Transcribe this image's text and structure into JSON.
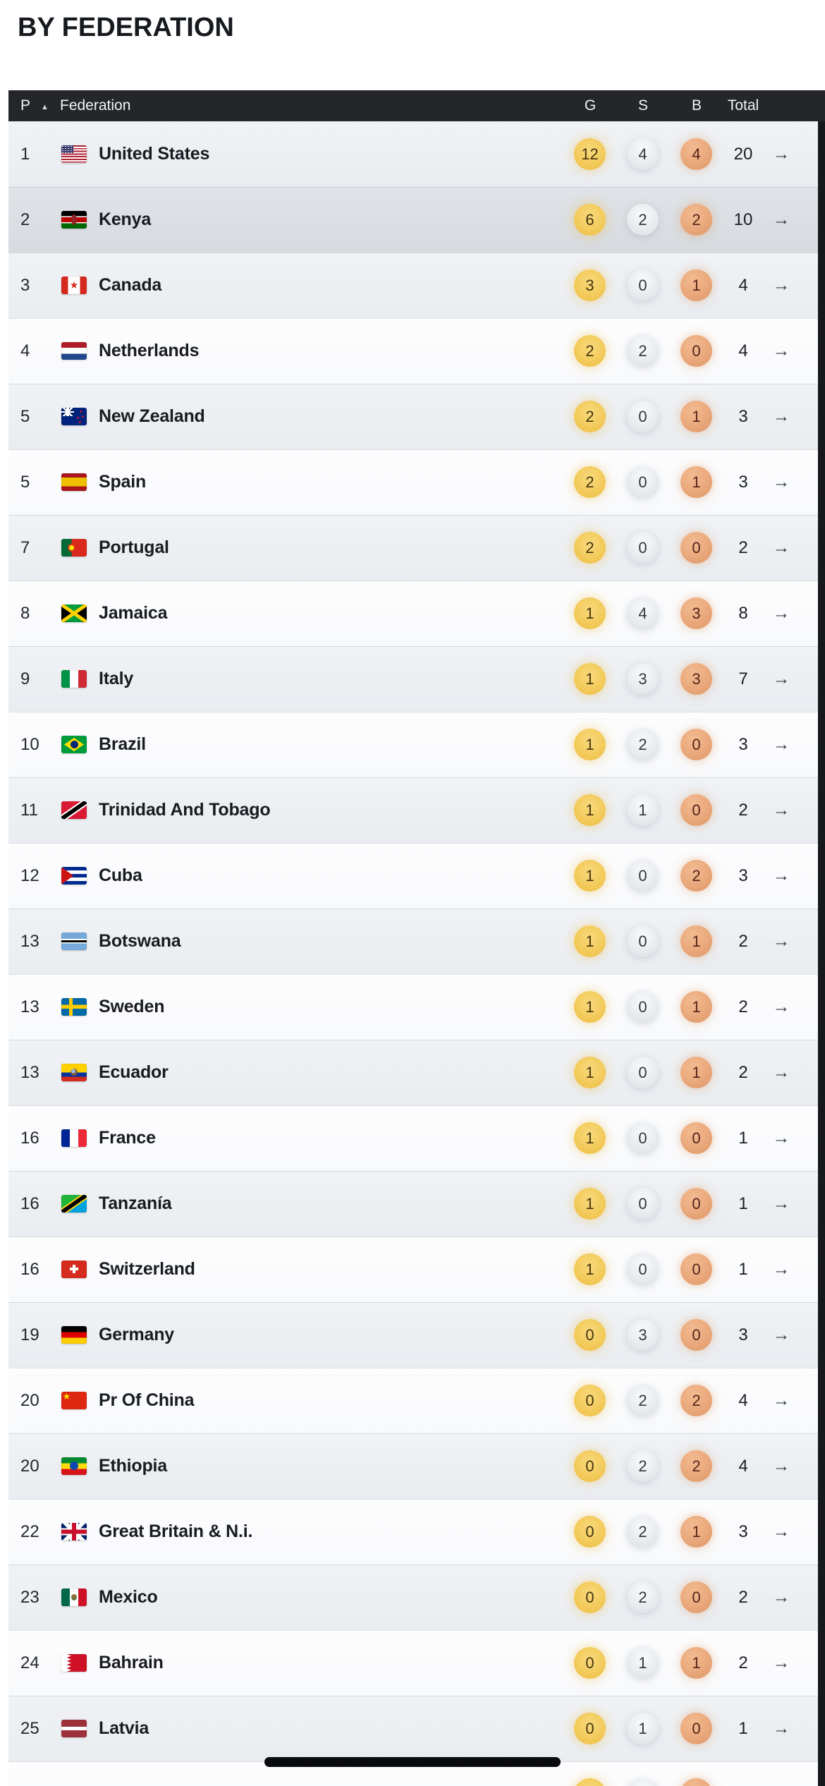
{
  "page": {
    "title": "BY FEDERATION"
  },
  "table": {
    "header": {
      "position": "P",
      "sort_icon": "▲",
      "sort_indicator_column": "P",
      "federation": "Federation",
      "gold": "G",
      "silver": "S",
      "bronze": "B",
      "total": "Total"
    },
    "row_arrow": "→",
    "colors": {
      "header_bg": "#242629",
      "row_alt": "#eceef2",
      "row_plain": "#fdfdfe",
      "row_selected": "#dcdfe3",
      "right_strip": "#17181b",
      "gold": "#f3cb5c",
      "silver": "#e9ecef",
      "bronze": "#e9a87b"
    },
    "rows": [
      {
        "pos": "1",
        "name": "United States",
        "flag": "us",
        "gold": "12",
        "silver": "4",
        "bronze": "4",
        "total": "20",
        "selected": false
      },
      {
        "pos": "2",
        "name": "Kenya",
        "flag": "ke",
        "gold": "6",
        "silver": "2",
        "bronze": "2",
        "total": "10",
        "selected": true
      },
      {
        "pos": "3",
        "name": "Canada",
        "flag": "ca",
        "gold": "3",
        "silver": "0",
        "bronze": "1",
        "total": "4",
        "selected": false
      },
      {
        "pos": "4",
        "name": "Netherlands",
        "flag": "nl",
        "gold": "2",
        "silver": "2",
        "bronze": "0",
        "total": "4",
        "selected": false
      },
      {
        "pos": "5",
        "name": "New Zealand",
        "flag": "nz",
        "gold": "2",
        "silver": "0",
        "bronze": "1",
        "total": "3",
        "selected": false
      },
      {
        "pos": "5",
        "name": "Spain",
        "flag": "es",
        "gold": "2",
        "silver": "0",
        "bronze": "1",
        "total": "3",
        "selected": false
      },
      {
        "pos": "7",
        "name": "Portugal",
        "flag": "pt",
        "gold": "2",
        "silver": "0",
        "bronze": "0",
        "total": "2",
        "selected": false
      },
      {
        "pos": "8",
        "name": "Jamaica",
        "flag": "jm",
        "gold": "1",
        "silver": "4",
        "bronze": "3",
        "total": "8",
        "selected": false
      },
      {
        "pos": "9",
        "name": "Italy",
        "flag": "it",
        "gold": "1",
        "silver": "3",
        "bronze": "3",
        "total": "7",
        "selected": false
      },
      {
        "pos": "10",
        "name": "Brazil",
        "flag": "br",
        "gold": "1",
        "silver": "2",
        "bronze": "0",
        "total": "3",
        "selected": false
      },
      {
        "pos": "11",
        "name": "Trinidad And Tobago",
        "flag": "tt",
        "gold": "1",
        "silver": "1",
        "bronze": "0",
        "total": "2",
        "selected": false
      },
      {
        "pos": "12",
        "name": "Cuba",
        "flag": "cu",
        "gold": "1",
        "silver": "0",
        "bronze": "2",
        "total": "3",
        "selected": false
      },
      {
        "pos": "13",
        "name": "Botswana",
        "flag": "bw",
        "gold": "1",
        "silver": "0",
        "bronze": "1",
        "total": "2",
        "selected": false
      },
      {
        "pos": "13",
        "name": "Sweden",
        "flag": "se",
        "gold": "1",
        "silver": "0",
        "bronze": "1",
        "total": "2",
        "selected": false
      },
      {
        "pos": "13",
        "name": "Ecuador",
        "flag": "ec",
        "gold": "1",
        "silver": "0",
        "bronze": "1",
        "total": "2",
        "selected": false
      },
      {
        "pos": "16",
        "name": "France",
        "flag": "fr",
        "gold": "1",
        "silver": "0",
        "bronze": "0",
        "total": "1",
        "selected": false
      },
      {
        "pos": "16",
        "name": "Tanzanía",
        "flag": "tz",
        "gold": "1",
        "silver": "0",
        "bronze": "0",
        "total": "1",
        "selected": false
      },
      {
        "pos": "16",
        "name": "Switzerland",
        "flag": "ch",
        "gold": "1",
        "silver": "0",
        "bronze": "0",
        "total": "1",
        "selected": false
      },
      {
        "pos": "19",
        "name": "Germany",
        "flag": "de",
        "gold": "0",
        "silver": "3",
        "bronze": "0",
        "total": "3",
        "selected": false
      },
      {
        "pos": "20",
        "name": "Pr Of China",
        "flag": "cn",
        "gold": "0",
        "silver": "2",
        "bronze": "2",
        "total": "4",
        "selected": false
      },
      {
        "pos": "20",
        "name": "Ethiopia",
        "flag": "et",
        "gold": "0",
        "silver": "2",
        "bronze": "2",
        "total": "4",
        "selected": false
      },
      {
        "pos": "22",
        "name": "Great Britain & N.i.",
        "flag": "gb",
        "gold": "0",
        "silver": "2",
        "bronze": "1",
        "total": "3",
        "selected": false
      },
      {
        "pos": "23",
        "name": "Mexico",
        "flag": "mx",
        "gold": "0",
        "silver": "2",
        "bronze": "0",
        "total": "2",
        "selected": false
      },
      {
        "pos": "24",
        "name": "Bahrain",
        "flag": "bh",
        "gold": "0",
        "silver": "1",
        "bronze": "1",
        "total": "2",
        "selected": false
      },
      {
        "pos": "25",
        "name": "Latvia",
        "flag": "lv",
        "gold": "0",
        "silver": "1",
        "bronze": "0",
        "total": "1",
        "selected": false
      }
    ],
    "partial_row": {
      "gold": "",
      "silver": "",
      "bronze": ""
    }
  },
  "system_ui": {
    "home_indicator": true
  }
}
